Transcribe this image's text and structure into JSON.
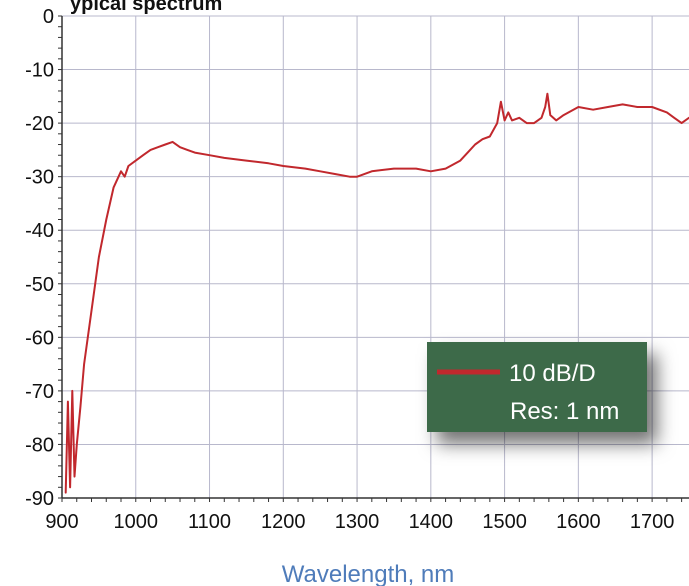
{
  "chart_data": {
    "type": "line",
    "title_fragment": "ypical spectrum",
    "xlabel": "Wavelength, nm",
    "ylabel": "",
    "xlim": [
      900,
      1750
    ],
    "ylim": [
      -90,
      0
    ],
    "x_ticks": [
      900,
      1000,
      1100,
      1200,
      1300,
      1400,
      1500,
      1600,
      1700
    ],
    "y_ticks": [
      0,
      -10,
      -20,
      -30,
      -40,
      -50,
      -60,
      -70,
      -80,
      -90
    ],
    "grid": true,
    "legend": {
      "position": "bottom-right",
      "entries": [
        "10 dB/D",
        "Res: 1 nm"
      ]
    },
    "series": [
      {
        "color": "#c1282d",
        "x": [
          905,
          908,
          911,
          914,
          917,
          920,
          925,
          930,
          940,
          950,
          960,
          970,
          980,
          985,
          990,
          1000,
          1010,
          1020,
          1030,
          1040,
          1050,
          1060,
          1070,
          1080,
          1100,
          1120,
          1150,
          1180,
          1200,
          1230,
          1250,
          1270,
          1290,
          1300,
          1320,
          1350,
          1380,
          1400,
          1420,
          1440,
          1450,
          1460,
          1470,
          1480,
          1490,
          1495,
          1500,
          1505,
          1510,
          1520,
          1530,
          1540,
          1550,
          1555,
          1558,
          1562,
          1570,
          1580,
          1600,
          1620,
          1640,
          1660,
          1680,
          1700,
          1720,
          1730,
          1740,
          1750
        ],
        "y": [
          -89,
          -72,
          -88,
          -70,
          -86,
          -80,
          -73,
          -65,
          -55,
          -45,
          -38,
          -32,
          -29,
          -30,
          -28,
          -27,
          -26,
          -25,
          -24.5,
          -24,
          -23.5,
          -24.5,
          -25,
          -25.5,
          -26,
          -26.5,
          -27,
          -27.5,
          -28,
          -28.5,
          -29,
          -29.5,
          -30,
          -30,
          -29,
          -28.5,
          -28.5,
          -29,
          -28.5,
          -27,
          -25.5,
          -24,
          -23,
          -22.5,
          -20,
          -16,
          -19.5,
          -18,
          -19.5,
          -19,
          -20,
          -20,
          -19,
          -17,
          -14.5,
          -18.5,
          -19.5,
          -18.5,
          -17,
          -17.5,
          -17,
          -16.5,
          -17,
          -17,
          -18,
          -19,
          -20,
          -19
        ]
      }
    ]
  }
}
